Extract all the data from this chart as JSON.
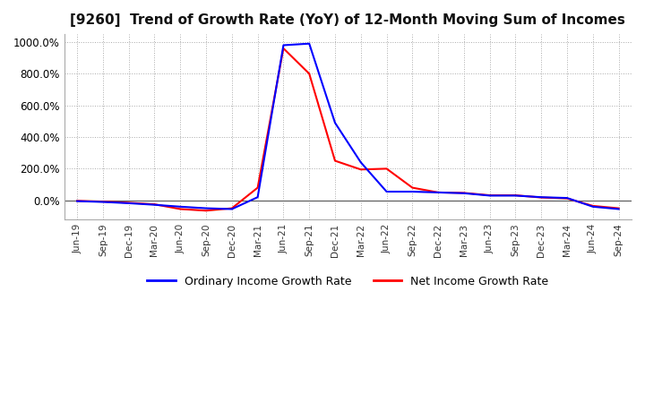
{
  "title": "[9260]  Trend of Growth Rate (YoY) of 12-Month Moving Sum of Incomes",
  "title_fontsize": 11,
  "legend_labels": [
    "Ordinary Income Growth Rate",
    "Net Income Growth Rate"
  ],
  "legend_colors": [
    "#0000ff",
    "#ff0000"
  ],
  "background_color": "#ffffff",
  "plot_bg_color": "#ffffff",
  "grid_color": "#aaaaaa",
  "ylim": [
    -120,
    1050
  ],
  "yticks": [
    0,
    200,
    400,
    600,
    800,
    1000
  ],
  "x_labels": [
    "Jun-19",
    "Sep-19",
    "Dec-19",
    "Mar-20",
    "Jun-20",
    "Sep-20",
    "Dec-20",
    "Mar-21",
    "Jun-21",
    "Sep-21",
    "Dec-21",
    "Mar-22",
    "Jun-22",
    "Sep-22",
    "Dec-22",
    "Mar-23",
    "Jun-23",
    "Sep-23",
    "Dec-23",
    "Mar-24",
    "Jun-24",
    "Sep-24"
  ],
  "ordinary_income": [
    -5,
    -10,
    -18,
    -28,
    -40,
    -50,
    -55,
    20,
    980,
    990,
    490,
    240,
    55,
    55,
    50,
    45,
    30,
    30,
    20,
    15,
    -40,
    -55
  ],
  "net_income": [
    -3,
    -8,
    -15,
    -25,
    -55,
    -65,
    -50,
    80,
    960,
    800,
    250,
    195,
    200,
    80,
    50,
    47,
    32,
    32,
    18,
    12,
    -35,
    -50
  ]
}
